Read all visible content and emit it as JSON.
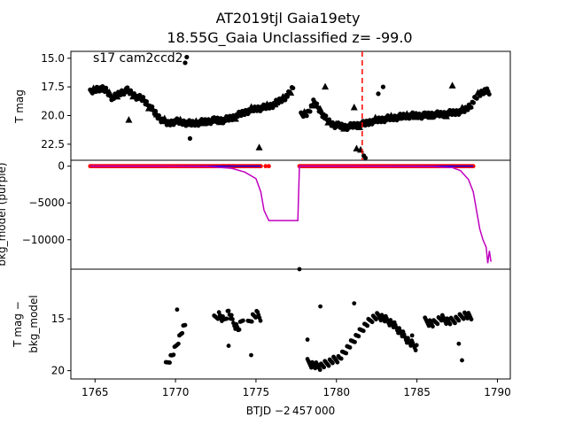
{
  "figure": {
    "title_line1": "AT2019tjl  Gaia19ety",
    "title_line2": "18.55G_Gaia Unclassified z= -99.0",
    "annotation": "s17 cam2ccd2",
    "xlabel": "BTJD −2 457 000"
  },
  "colors": {
    "points": "#000000",
    "red": "#ff0000",
    "purple": "#bf00bf",
    "blue": "#0000ff",
    "marker_line": "#ff0000"
  },
  "chart_data": [
    {
      "panel": "top",
      "type": "scatter",
      "ylabel": "T mag",
      "y_inverted": true,
      "xlim": [
        1763.5,
        1790.8
      ],
      "ylim": [
        23.9,
        14.4
      ],
      "yticks": [
        15.0,
        17.5,
        20.0,
        22.5
      ],
      "ytick_labels": [
        "15.0",
        "17.5",
        "20.0",
        "22.5"
      ],
      "vline_x": 1781.6,
      "segments": [
        {
          "x": [
            1764.7,
            1765.2,
            1765.7,
            1766.1,
            1766.6,
            1767.0,
            1767.5,
            1768.0,
            1768.5,
            1769.0,
            1769.5,
            1770.0,
            1770.5,
            1771.0,
            1771.5,
            1772.0,
            1772.5,
            1773.0,
            1773.5,
            1774.0,
            1774.5,
            1775.0,
            1775.5,
            1776.0,
            1776.5,
            1777.0,
            1777.3
          ],
          "y": [
            18.0,
            17.6,
            17.8,
            18.5,
            18.0,
            17.8,
            18.3,
            18.6,
            19.4,
            20.2,
            20.7,
            20.5,
            20.6,
            20.7,
            20.6,
            20.5,
            20.4,
            20.4,
            20.2,
            19.9,
            19.6,
            19.4,
            19.3,
            19.1,
            18.7,
            18.2,
            17.6
          ]
        },
        {
          "x": [
            1777.8,
            1778.2,
            1778.6,
            1779.0,
            1779.4,
            1779.8,
            1780.2,
            1780.6,
            1781.0,
            1781.4,
            1781.8,
            1782.2,
            1782.6,
            1783.0,
            1783.5,
            1784.0,
            1784.5,
            1785.0,
            1785.5,
            1786.0,
            1786.5,
            1787.0,
            1787.5,
            1788.0,
            1788.4,
            1788.8,
            1789.2,
            1789.5
          ],
          "y": [
            20.0,
            19.8,
            18.8,
            19.6,
            20.4,
            20.8,
            20.9,
            21.0,
            20.9,
            20.8,
            20.7,
            20.5,
            20.4,
            20.3,
            20.2,
            20.1,
            20.0,
            20.0,
            20.0,
            19.9,
            19.9,
            19.8,
            19.7,
            19.5,
            19.0,
            18.2,
            17.8,
            18.0
          ]
        }
      ],
      "outliers": {
        "x": [
          1770.6,
          1770.7,
          1767.1,
          1775.2,
          1781.1,
          1781.25,
          1781.5,
          1781.7,
          1781.8,
          1782.6,
          1782.9,
          1779.3,
          1787.2,
          1770.9
        ],
        "y": [
          15.4,
          14.9,
          20.4,
          22.8,
          19.3,
          22.9,
          23.0,
          23.5,
          23.7,
          18.1,
          17.5,
          17.5,
          17.4,
          22.0
        ],
        "markers": [
          "dot",
          "dot",
          "tri",
          "tri",
          "tri",
          "tri",
          "tri",
          "dot",
          "dot",
          "dot",
          "dot",
          "tri",
          "tri",
          "dot"
        ]
      }
    },
    {
      "panel": "middle",
      "type": "line",
      "ylabel": "bkg_model (purple)",
      "xlim": [
        1763.5,
        1790.8
      ],
      "ylim": [
        -14000,
        800
      ],
      "yticks": [
        0,
        -5000,
        -10000
      ],
      "ytick_labels": [
        "0",
        "−5000",
        "−10000"
      ],
      "purple_line": {
        "x": [
          1764.7,
          1769.0,
          1772.0,
          1773.5,
          1774.3,
          1775.0,
          1775.3,
          1775.5,
          1775.8,
          1776.0,
          1776.5,
          1777.0,
          1777.6,
          1777.6,
          1777.7,
          1780.0,
          1783.0,
          1786.0,
          1787.2,
          1787.7,
          1788.2,
          1788.5,
          1788.7,
          1788.9,
          1789.1,
          1789.3,
          1789.4,
          1789.5,
          1789.6
        ],
        "y": [
          0,
          0,
          -50,
          -300,
          -800,
          -1700,
          -3500,
          -6000,
          -7400,
          -7400,
          -7400,
          -7400,
          -7400,
          -7400,
          0,
          0,
          -20,
          -60,
          -200,
          -600,
          -1800,
          -3500,
          -6000,
          -8500,
          -10000,
          -11000,
          -13200,
          -11500,
          -13000
        ]
      },
      "red_band_x": [
        [
          1764.7,
          1775.3
        ],
        [
          1777.7,
          1788.5
        ]
      ],
      "red_extra_x": [
        1773.0,
        1773.3,
        1773.6,
        1775.6,
        1775.8
      ]
    },
    {
      "panel": "bottom",
      "type": "scatter",
      "ylabel_line1": "T mag −",
      "ylabel_line2": "bkg_model",
      "y_inverted": true,
      "xlim": [
        1763.5,
        1790.8
      ],
      "ylim": [
        20.8,
        10.2
      ],
      "yticks": [
        15,
        20
      ],
      "ytick_labels": [
        "15",
        "20"
      ],
      "groups": [
        {
          "x": [
            1769.4,
            1769.6,
            1769.8,
            1770.0,
            1770.2,
            1770.4,
            1770.6
          ],
          "y": [
            19.5,
            19.0,
            18.5,
            17.8,
            17.0,
            16.2,
            15.6
          ]
        },
        {
          "x": [
            1772.4,
            1772.7,
            1773.0,
            1773.3,
            1773.6,
            1773.9,
            1774.2
          ],
          "y": [
            15.0,
            14.6,
            15.2,
            14.3,
            15.4,
            16.0,
            15.0
          ]
        },
        {
          "x": [
            1774.5,
            1774.8,
            1775.1,
            1775.3
          ],
          "y": [
            15.5,
            14.8,
            14.5,
            14.9
          ]
        },
        {
          "x": [
            1778.2,
            1778.6,
            1779.0,
            1779.4,
            1779.8,
            1780.2,
            1780.6,
            1781.0,
            1781.4,
            1781.8,
            1782.2,
            1782.6,
            1783.0,
            1783.5,
            1784.0,
            1784.5,
            1785.0
          ],
          "y": [
            19.2,
            19.5,
            19.6,
            19.3,
            19.0,
            18.8,
            18.0,
            17.2,
            16.4,
            15.6,
            15.0,
            14.7,
            15.0,
            15.5,
            16.3,
            17.2,
            17.8
          ]
        },
        {
          "x": [
            1785.5,
            1786.0,
            1786.5,
            1787.0,
            1787.5,
            1788.0,
            1788.4
          ],
          "y": [
            15.2,
            15.5,
            14.9,
            15.3,
            15.0,
            14.6,
            14.9
          ]
        }
      ],
      "outliers": {
        "x": [
          1777.7,
          1779.0,
          1773.3,
          1774.7,
          1781.1,
          1778.2,
          1787.6,
          1787.8,
          1784.7,
          1770.1
        ],
        "y": [
          10.2,
          13.8,
          17.6,
          18.5,
          13.5,
          17.0,
          17.4,
          19.0,
          16.6,
          14.1
        ]
      }
    }
  ],
  "xaxis": {
    "ticks": [
      1765,
      1770,
      1775,
      1780,
      1785,
      1790
    ],
    "tick_labels": [
      "1765",
      "1770",
      "1775",
      "1780",
      "1785",
      "1790"
    ]
  }
}
